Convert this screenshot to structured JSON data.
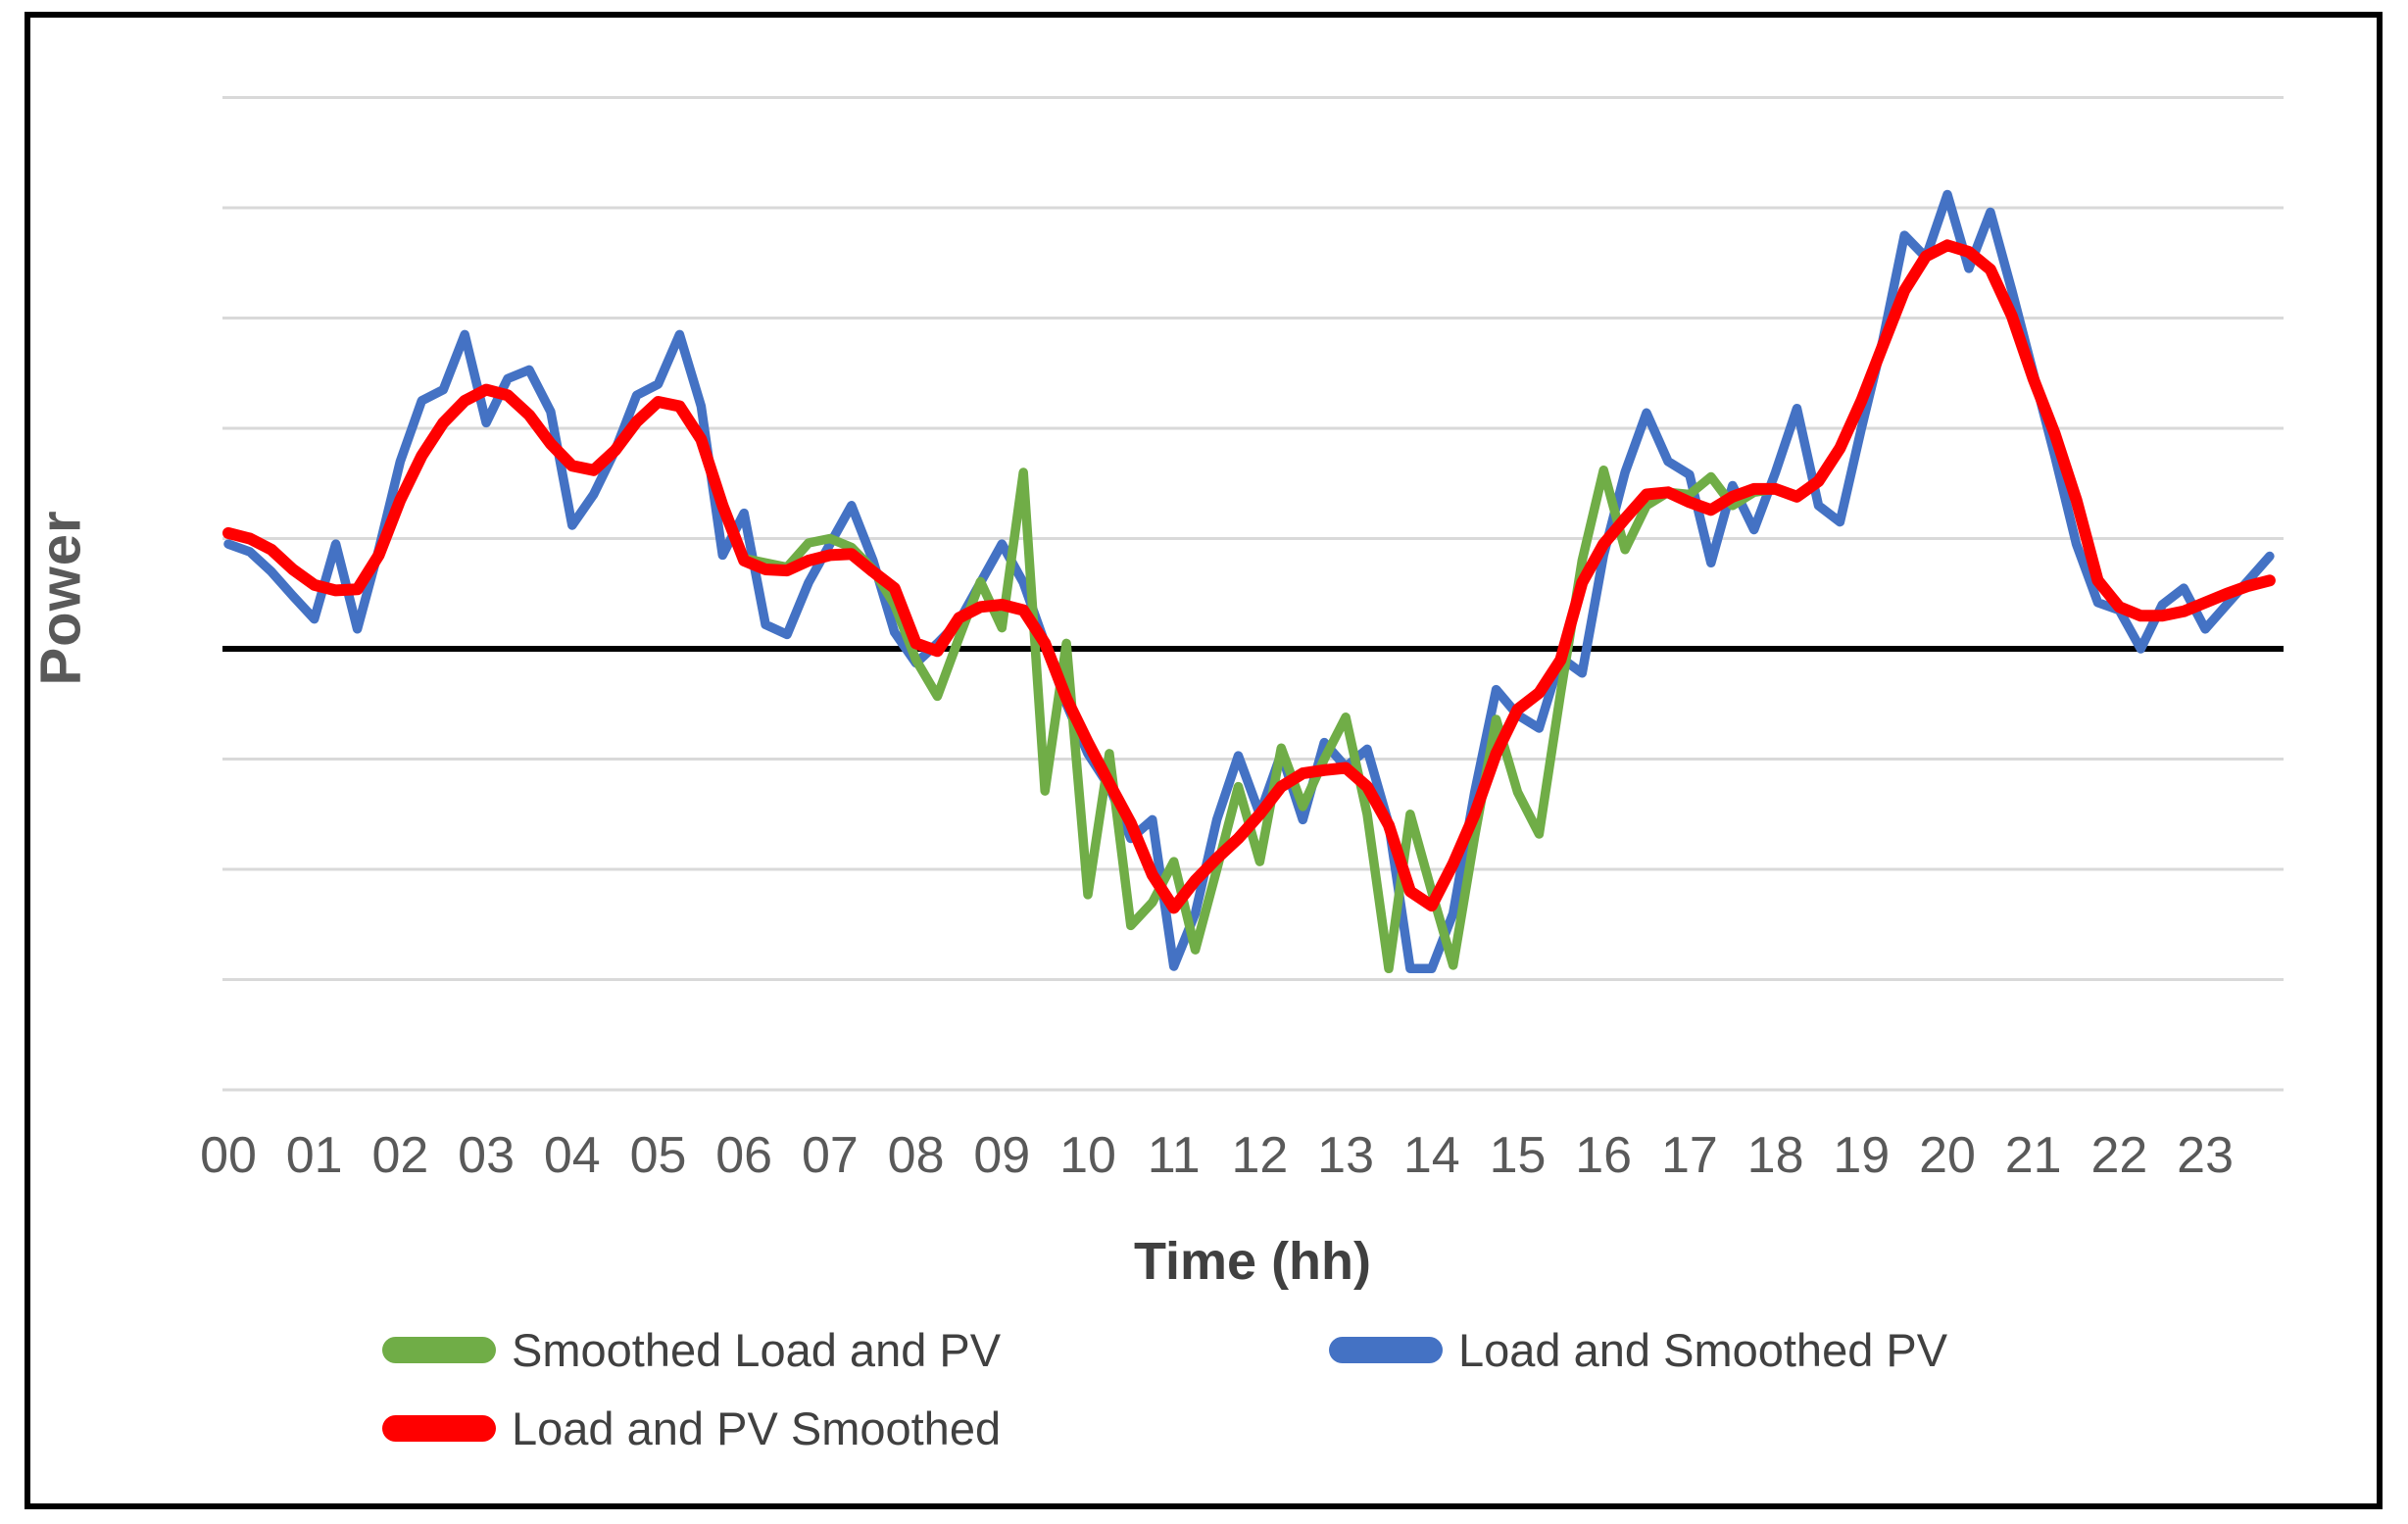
{
  "figure": {
    "background_color": "#FFFFFF",
    "border_color": "#000000",
    "gridline_color": "#D9D9D9",
    "zero_line_color": "#000000",
    "tick_label_color": "#595959",
    "axis_title_color": "#404040"
  },
  "chart_data": {
    "type": "line",
    "title": "",
    "xlabel": "Time (hh)",
    "ylabel": "Power",
    "x_start_hour": 0,
    "x_step_hours": 0.25,
    "x_tick_labels": [
      "00",
      "01",
      "02",
      "03",
      "04",
      "05",
      "06",
      "07",
      "08",
      "09",
      "10",
      "11",
      "12",
      "13",
      "14",
      "15",
      "16",
      "17",
      "18",
      "19",
      "20",
      "21",
      "22",
      "23"
    ],
    "y_gridline_values": [
      5,
      4,
      3,
      2,
      1,
      -1,
      -2,
      -3,
      -4
    ],
    "y_axis_line_value": 0,
    "ylim": [
      -4.4,
      5.35
    ],
    "grid": "horizontal gridlines only, no y tick labels",
    "legend_position": "bottom",
    "series": [
      {
        "name": "Smoothed Load and PV",
        "color": "#70AD47",
        "values": [
          1.05,
          1.0,
          0.9,
          0.72,
          0.58,
          0.53,
          0.54,
          0.85,
          1.35,
          1.75,
          2.05,
          2.25,
          2.35,
          2.3,
          2.12,
          1.86,
          1.66,
          1.62,
          1.8,
          2.06,
          2.24,
          2.2,
          1.9,
          1.3,
          0.82,
          0.78,
          0.74,
          0.96,
          1.0,
          0.92,
          0.72,
          0.4,
          -0.1,
          -0.43,
          0.1,
          0.61,
          0.19,
          1.6,
          -1.29,
          0.05,
          -2.23,
          -0.95,
          -2.51,
          -2.3,
          -1.93,
          -2.73,
          -2.0,
          -1.25,
          -1.93,
          -0.9,
          -1.43,
          -1.0,
          -0.62,
          -1.5,
          -2.9,
          -1.5,
          -2.2,
          -2.87,
          -1.7,
          -0.64,
          -1.3,
          -1.68,
          -0.4,
          0.8,
          1.62,
          0.9,
          1.3,
          1.42,
          1.4,
          1.56,
          1.3,
          1.42,
          1.45,
          1.38,
          1.52,
          1.82,
          2.25,
          2.75,
          3.25,
          3.56,
          3.66,
          3.6,
          3.44,
          3.02,
          2.45,
          1.95,
          1.35,
          0.62,
          0.38,
          0.3,
          0.3,
          0.34,
          0.42,
          0.5,
          0.57,
          0.62
        ]
      },
      {
        "name": "Load and Smoothed PV",
        "color": "#4472C4",
        "values": [
          0.95,
          0.88,
          0.7,
          0.48,
          0.27,
          0.95,
          0.18,
          0.9,
          1.7,
          2.25,
          2.35,
          2.85,
          2.05,
          2.45,
          2.53,
          2.15,
          1.12,
          1.4,
          1.8,
          2.3,
          2.4,
          2.85,
          2.2,
          0.85,
          1.23,
          0.22,
          0.13,
          0.6,
          0.95,
          1.3,
          0.8,
          0.15,
          -0.13,
          0.05,
          0.25,
          0.6,
          0.95,
          0.6,
          0.05,
          -0.5,
          -0.95,
          -1.25,
          -1.72,
          -1.55,
          -2.88,
          -2.4,
          -1.55,
          -0.97,
          -1.5,
          -0.95,
          -1.55,
          -0.85,
          -1.07,
          -0.91,
          -1.59,
          -2.9,
          -2.9,
          -2.4,
          -1.3,
          -0.37,
          -0.6,
          -0.72,
          -0.08,
          -0.22,
          0.85,
          1.6,
          2.14,
          1.7,
          1.58,
          0.78,
          1.48,
          1.08,
          1.6,
          2.18,
          1.3,
          1.15,
          2.0,
          2.8,
          3.75,
          3.55,
          4.12,
          3.45,
          3.96,
          3.25,
          2.5,
          1.75,
          0.95,
          0.42,
          0.35,
          0.0,
          0.4,
          0.55,
          0.18,
          0.4,
          0.62,
          0.84
        ]
      },
      {
        "name": "Load and PV Smoothed",
        "color": "#FF0000",
        "values": [
          1.05,
          1.0,
          0.9,
          0.72,
          0.58,
          0.53,
          0.54,
          0.85,
          1.35,
          1.75,
          2.05,
          2.25,
          2.35,
          2.3,
          2.12,
          1.86,
          1.66,
          1.62,
          1.8,
          2.06,
          2.24,
          2.2,
          1.9,
          1.3,
          0.8,
          0.72,
          0.71,
          0.8,
          0.85,
          0.86,
          0.7,
          0.55,
          0.05,
          -0.02,
          0.28,
          0.38,
          0.4,
          0.35,
          0.05,
          -0.45,
          -0.85,
          -1.22,
          -1.58,
          -2.05,
          -2.35,
          -2.1,
          -1.9,
          -1.72,
          -1.5,
          -1.25,
          -1.13,
          -1.1,
          -1.08,
          -1.25,
          -1.6,
          -2.2,
          -2.33,
          -1.95,
          -1.5,
          -0.95,
          -0.55,
          -0.4,
          -0.1,
          0.6,
          0.95,
          1.18,
          1.4,
          1.42,
          1.33,
          1.26,
          1.38,
          1.45,
          1.45,
          1.38,
          1.52,
          1.82,
          2.25,
          2.75,
          3.25,
          3.56,
          3.66,
          3.6,
          3.44,
          3.02,
          2.45,
          1.95,
          1.35,
          0.62,
          0.38,
          0.3,
          0.3,
          0.34,
          0.42,
          0.5,
          0.57,
          0.62
        ]
      }
    ],
    "draw_order_series_indexes": [
      1,
      0,
      2
    ],
    "line_widths": {
      "default": 9.5,
      "smoothed": 12
    }
  }
}
